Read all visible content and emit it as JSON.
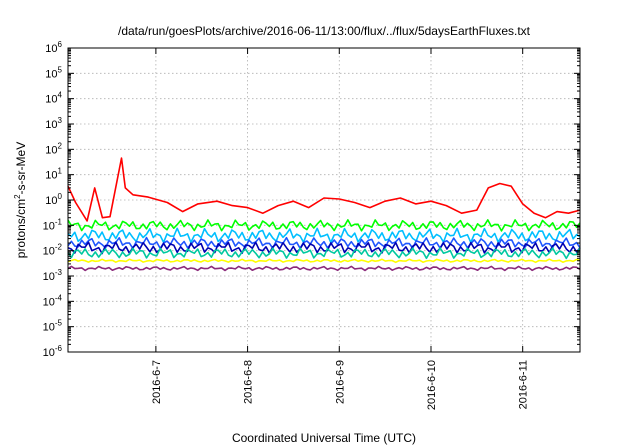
{
  "chart_data": {
    "type": "line",
    "title": "/data/run/goesPlots/archive/2016-06-11/13:00/flux/../flux/5daysEarthFluxes.txt",
    "xlabel": "Coordinated Universal Time (UTC)",
    "ylabel": "protons/cm²-s-sr-MeV",
    "ylabel_parts": {
      "pre": "protons/cm",
      "sup": "2",
      "post": "-s-sr-MeV"
    },
    "y_scale": "log",
    "ylim": [
      1e-06,
      1000000.0
    ],
    "y_ticks": [
      {
        "base": "10",
        "exp": "-6",
        "value": 1e-06
      },
      {
        "base": "10",
        "exp": "-5",
        "value": 1e-05
      },
      {
        "base": "10",
        "exp": "-4",
        "value": 0.0001
      },
      {
        "base": "10",
        "exp": "-3",
        "value": 0.001
      },
      {
        "base": "10",
        "exp": "-2",
        "value": 0.01
      },
      {
        "base": "10",
        "exp": "-1",
        "value": 0.1
      },
      {
        "base": "10",
        "exp": "0",
        "value": 1
      },
      {
        "base": "10",
        "exp": "1",
        "value": 10
      },
      {
        "base": "10",
        "exp": "2",
        "value": 100
      },
      {
        "base": "10",
        "exp": "3",
        "value": 1000
      },
      {
        "base": "10",
        "exp": "4",
        "value": 10000
      },
      {
        "base": "10",
        "exp": "5",
        "value": 100000
      },
      {
        "base": "10",
        "exp": "6",
        "value": 1000000
      }
    ],
    "xlim": [
      "2016-06-06 01:00",
      "2016-06-11 15:00"
    ],
    "x_ticks": [
      {
        "label": "2016-6-7",
        "value": "2016-06-07 00:00"
      },
      {
        "label": "2016-6-8",
        "value": "2016-06-08 00:00"
      },
      {
        "label": "2016-6-9",
        "value": "2016-06-09 00:00"
      },
      {
        "label": "2016-6-10",
        "value": "2016-06-10 00:00"
      },
      {
        "label": "2016-6-11",
        "value": "2016-06-11 00:00"
      }
    ],
    "grid": true,
    "series": [
      {
        "color": "#ff0000",
        "x": [
          "2016-06-06 01:00",
          "2016-06-06 03:00",
          "2016-06-06 06:00",
          "2016-06-06 08:00",
          "2016-06-06 10:00",
          "2016-06-06 12:00",
          "2016-06-06 15:00",
          "2016-06-06 16:00",
          "2016-06-06 18:00",
          "2016-06-06 22:00",
          "2016-06-07 03:00",
          "2016-06-07 07:00",
          "2016-06-07 11:00",
          "2016-06-07 16:00",
          "2016-06-07 20:00",
          "2016-06-08 00:00",
          "2016-06-08 04:00",
          "2016-06-08 08:00",
          "2016-06-08 12:00",
          "2016-06-08 16:00",
          "2016-06-08 20:00",
          "2016-06-09 00:00",
          "2016-06-09 04:00",
          "2016-06-09 08:00",
          "2016-06-09 12:00",
          "2016-06-09 16:00",
          "2016-06-09 20:00",
          "2016-06-10 00:00",
          "2016-06-10 04:00",
          "2016-06-10 08:00",
          "2016-06-10 12:00",
          "2016-06-10 15:00",
          "2016-06-10 18:00",
          "2016-06-10 21:00",
          "2016-06-11 00:00",
          "2016-06-11 03:00",
          "2016-06-11 06:00",
          "2016-06-11 09:00",
          "2016-06-11 12:00",
          "2016-06-11 15:00"
        ],
        "values": [
          3.5,
          0.8,
          0.15,
          3,
          0.2,
          0.22,
          45,
          3,
          1.6,
          1.3,
          0.8,
          0.35,
          0.7,
          0.9,
          0.6,
          0.5,
          0.3,
          0.6,
          0.9,
          0.5,
          1.2,
          1.1,
          0.8,
          0.5,
          0.9,
          1.2,
          0.7,
          0.9,
          0.6,
          0.3,
          0.4,
          3,
          4.5,
          3.5,
          0.7,
          0.3,
          0.2,
          0.35,
          0.3,
          0.4
        ]
      },
      {
        "color": "#00ff00",
        "x": [
          "2016-06-06 01:00",
          "2016-06-11 15:00"
        ],
        "values": [
          0.1,
          0.1
        ]
      },
      {
        "color": "#00bfff",
        "x": [
          "2016-06-06 01:00",
          "2016-06-11 15:00"
        ],
        "values": [
          0.04,
          0.04
        ]
      },
      {
        "color": "#1e56ff",
        "x": [
          "2016-06-06 01:00",
          "2016-06-11 15:00"
        ],
        "values": [
          0.02,
          0.02
        ]
      },
      {
        "color": "#0000b0",
        "x": [
          "2016-06-06 01:00",
          "2016-06-11 15:00"
        ],
        "values": [
          0.013,
          0.013
        ]
      },
      {
        "color": "#00c8a0",
        "x": [
          "2016-06-06 01:00",
          "2016-06-11 15:00"
        ],
        "values": [
          0.008,
          0.008
        ]
      },
      {
        "color": "#ffff00",
        "x": [
          "2016-06-06 01:00",
          "2016-06-11 15:00"
        ],
        "values": [
          0.004,
          0.004
        ]
      },
      {
        "color": "#8b2a7a",
        "x": [
          "2016-06-06 01:00",
          "2016-06-11 15:00"
        ],
        "values": [
          0.002,
          0.002
        ]
      }
    ]
  }
}
